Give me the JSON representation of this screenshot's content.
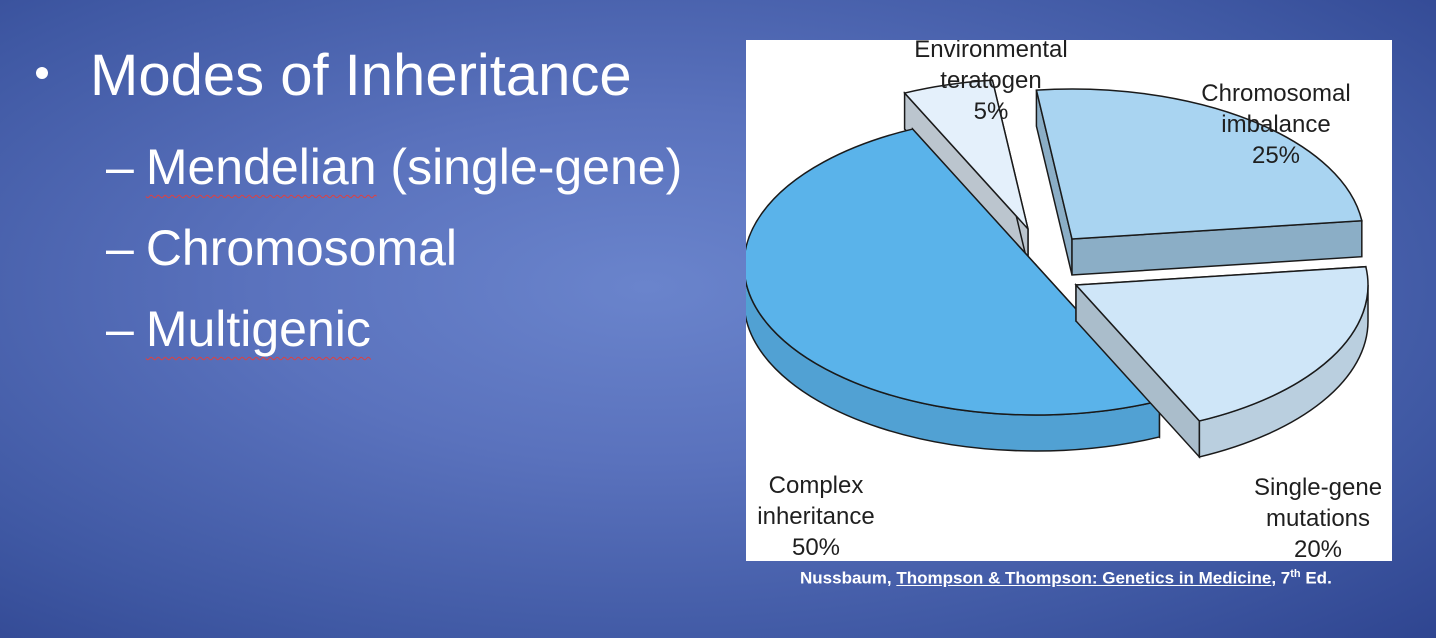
{
  "slide": {
    "heading": "Modes of Inheritance",
    "sub_items": [
      {
        "dash": "–",
        "underlined": "Mendelian",
        "rest": " (single-gene)"
      },
      {
        "dash": "–",
        "underlined": "",
        "rest": "Chromosomal"
      },
      {
        "dash": "–",
        "underlined": "Multigenic",
        "rest": ""
      }
    ]
  },
  "chart_data": {
    "type": "pie",
    "title": "",
    "slices": [
      {
        "name": "Environmental teratogen",
        "line1": "Environmental",
        "line2": "teratogen",
        "percent_label": "5%",
        "value": 5,
        "color": "#e4f0fb"
      },
      {
        "name": "Chromosomal imbalance",
        "line1": "Chromosomal",
        "line2": "imbalance",
        "percent_label": "25%",
        "value": 25,
        "color": "#a9d4f1"
      },
      {
        "name": "Single-gene mutations",
        "line1": "Single-gene",
        "line2": "mutations",
        "percent_label": "20%",
        "value": 20,
        "color": "#cfe6f8"
      },
      {
        "name": "Complex inheritance",
        "line1": "Complex",
        "line2": "inheritance",
        "percent_label": "50%",
        "value": 50,
        "color": "#5ab3ea"
      }
    ],
    "style": "3d-exploded"
  },
  "citation": {
    "author": "Nussbaum, ",
    "book": "Thompson & Thompson: Genetics in Medicine",
    "edition_prefix": ", 7",
    "edition_sup": "th",
    "edition_suffix": " Ed."
  }
}
